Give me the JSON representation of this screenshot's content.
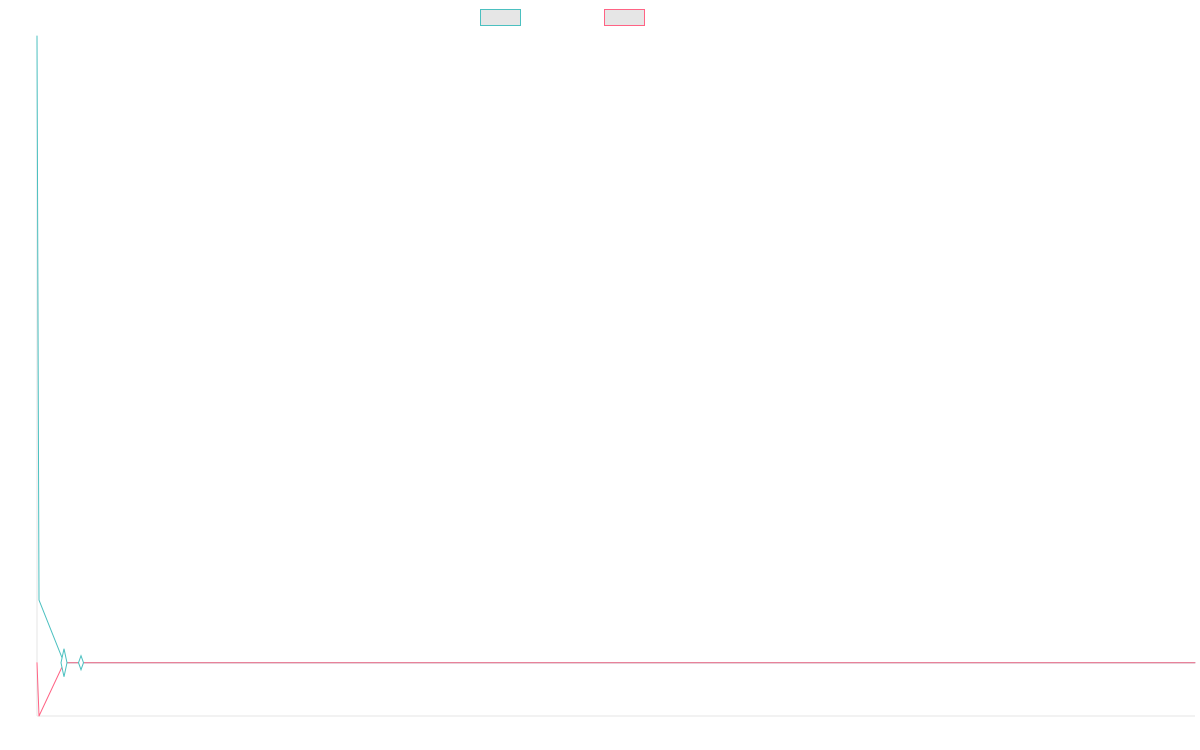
{
  "chart_data": {
    "type": "line",
    "title": "",
    "xlabel": "",
    "ylabel": "",
    "grid": false,
    "legend": {
      "placement": "top-center",
      "show_labels": false
    },
    "x": [
      0,
      1,
      2,
      3,
      4,
      5,
      6,
      7,
      8,
      9,
      10,
      11,
      12,
      13,
      14,
      15,
      16,
      17,
      18,
      19,
      20,
      21,
      22,
      23,
      24,
      25,
      26,
      27,
      28,
      29,
      30,
      31,
      32,
      33,
      34,
      35,
      36,
      37,
      38,
      39,
      40,
      41,
      42,
      43,
      44,
      45,
      46,
      47,
      48,
      49,
      50,
      51,
      52,
      53,
      54,
      55,
      56,
      57,
      58,
      59,
      60,
      61,
      62,
      63,
      64,
      65,
      66,
      67,
      68,
      69,
      70,
      71,
      72,
      73,
      74,
      75,
      76,
      77,
      78,
      79,
      80
    ],
    "series": [
      {
        "color": "#4bc0c0",
        "fill": "#e6e6e6",
        "values": [
          1,
          0.1,
          0,
          0,
          0,
          0,
          0,
          0,
          0,
          0,
          0,
          0,
          0,
          0,
          0,
          0,
          0,
          0,
          0,
          0,
          0,
          0,
          0,
          0,
          0,
          0,
          0,
          0,
          0,
          0,
          0,
          0,
          0,
          0,
          0,
          0,
          0,
          0,
          0,
          0,
          0,
          0,
          0,
          0,
          0,
          0,
          0,
          0,
          0,
          0,
          0,
          0,
          0,
          0,
          0,
          0,
          0,
          0,
          0,
          0,
          0,
          0,
          0,
          0,
          0,
          0,
          0,
          0,
          0,
          0,
          0,
          0,
          0,
          0,
          0,
          0,
          0,
          0,
          0,
          0,
          0
        ]
      },
      {
        "color": "#ff6384",
        "fill": "#e6e6e6",
        "values": [
          0,
          -0.085,
          0,
          0,
          0,
          0,
          0,
          0,
          0,
          0,
          0,
          0,
          0,
          0,
          0,
          0,
          0,
          0,
          0,
          0,
          0,
          0,
          0,
          0,
          0,
          0,
          0,
          0,
          0,
          0,
          0,
          0,
          0,
          0,
          0,
          0,
          0,
          0,
          0,
          0,
          0,
          0,
          0,
          0,
          0,
          0,
          0,
          0,
          0,
          0,
          0,
          0,
          0,
          0,
          0,
          0,
          0,
          0,
          0,
          0,
          0,
          0,
          0,
          0,
          0,
          0,
          0,
          0,
          0,
          0,
          0,
          0,
          0,
          0,
          0,
          0,
          0,
          0,
          0,
          0,
          0
        ]
      }
    ],
    "xlim": [
      0,
      80
    ],
    "ylim": [
      -0.085,
      1
    ]
  }
}
